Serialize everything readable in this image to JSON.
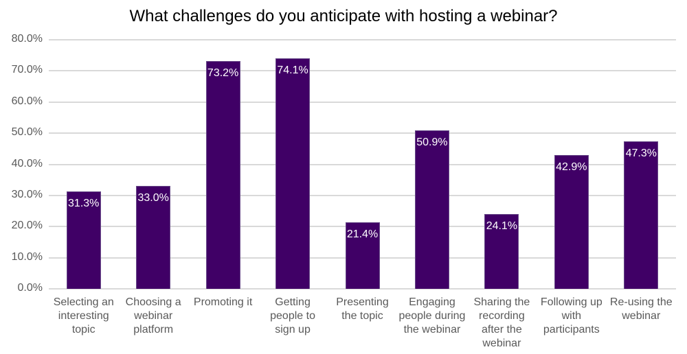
{
  "chart_data": {
    "type": "bar",
    "title": "What challenges do you anticipate with hosting a webinar?",
    "xlabel": "",
    "ylabel": "",
    "ylim": [
      0,
      80
    ],
    "yticks": [
      "0.0%",
      "10.0%",
      "20.0%",
      "30.0%",
      "40.0%",
      "50.0%",
      "60.0%",
      "70.0%",
      "80.0%"
    ],
    "grid": true,
    "legend": null,
    "bar_color": "#400066",
    "categories": [
      "Selecting an interesting topic",
      "Choosing a webinar platform",
      "Promoting it",
      "Getting people to sign up",
      "Presenting the topic",
      "Engaging people during the webinar",
      "Sharing the recording after the webinar",
      "Following up with participants",
      "Re-using the webinar"
    ],
    "category_lines": [
      "Selecting an\ninteresting\ntopic",
      "Choosing a\nwebinar\nplatform",
      "Promoting it",
      "Getting\npeople to\nsign up",
      "Presenting\nthe topic",
      "Engaging\npeople during\nthe webinar",
      "Sharing the\nrecording\nafter the\nwebinar",
      "Following up\nwith\nparticipants",
      "Re-using the\nwebinar"
    ],
    "values": [
      31.3,
      33.0,
      73.2,
      74.1,
      21.4,
      50.9,
      24.1,
      42.9,
      47.3
    ],
    "data_labels": [
      "31.3%",
      "33.0%",
      "73.2%",
      "74.1%",
      "21.4%",
      "50.9%",
      "24.1%",
      "42.9%",
      "47.3%"
    ]
  }
}
